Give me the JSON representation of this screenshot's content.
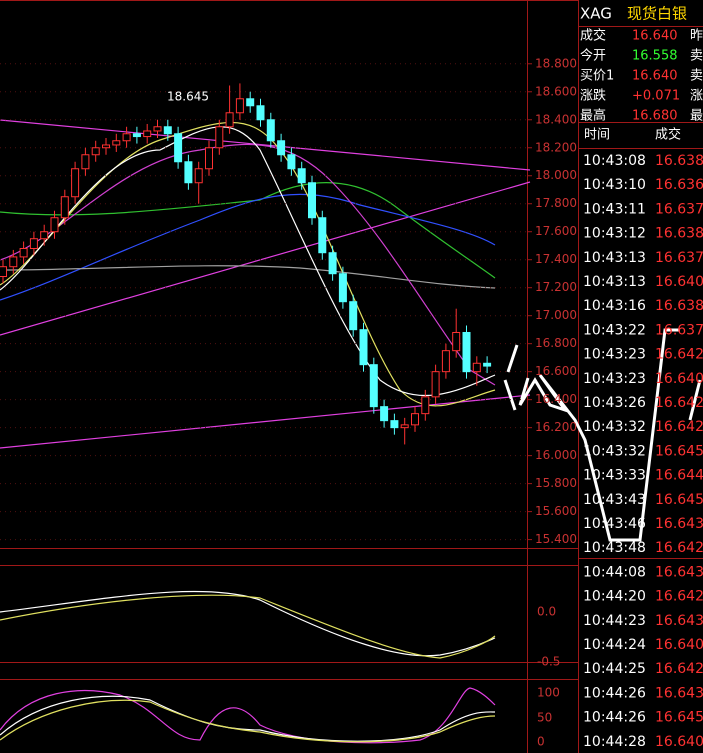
{
  "chart_data": {
    "type": "candlestick",
    "annotation": "18.645",
    "open": [
      17.28,
      17.35,
      17.42,
      17.48,
      17.55,
      17.6,
      17.7,
      17.85,
      18.05,
      18.15,
      18.2,
      18.22,
      18.25,
      18.3,
      18.28,
      18.32,
      18.35,
      18.3,
      18.1,
      17.95,
      18.05,
      18.2,
      18.35,
      18.45,
      18.55,
      18.5,
      18.4,
      18.25,
      18.15,
      18.05,
      17.95,
      17.7,
      17.45,
      17.3,
      17.1,
      16.9,
      16.65,
      16.35,
      16.25,
      16.2,
      16.22,
      16.3,
      16.42,
      16.6,
      16.75,
      16.88,
      16.6,
      16.66
    ],
    "high": [
      17.4,
      17.47,
      17.53,
      17.6,
      17.65,
      17.75,
      17.9,
      18.1,
      18.2,
      18.25,
      18.27,
      18.3,
      18.35,
      18.35,
      18.37,
      18.4,
      18.4,
      18.35,
      18.15,
      18.1,
      18.25,
      18.4,
      18.645,
      18.66,
      18.6,
      18.55,
      18.45,
      18.3,
      18.2,
      18.1,
      18.0,
      17.75,
      17.5,
      17.35,
      17.15,
      16.95,
      16.7,
      16.4,
      16.3,
      16.27,
      16.35,
      16.47,
      16.65,
      16.8,
      17.05,
      16.93,
      16.71,
      16.71
    ],
    "low": [
      17.23,
      17.3,
      17.37,
      17.43,
      17.5,
      17.55,
      17.65,
      17.8,
      18.0,
      18.1,
      18.15,
      18.17,
      18.2,
      18.23,
      18.23,
      18.27,
      18.25,
      18.05,
      17.9,
      17.8,
      18.0,
      18.15,
      18.3,
      18.4,
      18.45,
      18.35,
      18.2,
      18.1,
      18.0,
      17.9,
      17.65,
      17.4,
      17.25,
      17.05,
      16.85,
      16.6,
      16.3,
      16.2,
      16.15,
      16.08,
      16.17,
      16.25,
      16.37,
      16.55,
      16.7,
      16.55,
      16.5,
      16.59
    ],
    "close": [
      17.35,
      17.42,
      17.48,
      17.55,
      17.6,
      17.7,
      17.85,
      18.05,
      18.15,
      18.2,
      18.22,
      18.25,
      18.3,
      18.28,
      18.32,
      18.35,
      18.3,
      18.1,
      17.95,
      18.05,
      18.2,
      18.35,
      18.45,
      18.55,
      18.5,
      18.4,
      18.25,
      18.15,
      18.05,
      17.95,
      17.7,
      17.45,
      17.3,
      17.1,
      16.9,
      16.65,
      16.35,
      16.25,
      16.2,
      16.22,
      16.3,
      16.42,
      16.6,
      16.75,
      16.88,
      16.6,
      16.66,
      16.64
    ],
    "up_color": "#ff3232",
    "down_color": "#54ffff",
    "ylim": [
      15.34,
      18.97
    ],
    "yticks": [
      {
        "value": 18.8,
        "label": "18.800"
      },
      {
        "value": 18.6,
        "label": "18.600"
      },
      {
        "value": 18.4,
        "label": "18.400"
      },
      {
        "value": 18.2,
        "label": "18.200"
      },
      {
        "value": 18,
        "label": "18.000"
      },
      {
        "value": 17.8,
        "label": "17.800"
      },
      {
        "value": 17.6,
        "label": "17.600"
      },
      {
        "value": 17.4,
        "label": "17.400"
      },
      {
        "value": 17.2,
        "label": "17.200"
      },
      {
        "value": 17,
        "label": "17.000"
      },
      {
        "value": 16.8,
        "label": "16.800"
      },
      {
        "value": 16.6,
        "label": "16.600"
      },
      {
        "value": 16.4,
        "label": "16.400"
      },
      {
        "value": 16.2,
        "label": "16.200"
      },
      {
        "value": 16,
        "label": "16.000"
      },
      {
        "value": 15.8,
        "label": "15.800"
      },
      {
        "value": 15.6,
        "label": "15.600"
      },
      {
        "value": 15.4,
        "label": "15.400"
      }
    ],
    "macd_labels": [
      "0.0",
      "-0.5"
    ],
    "kdj_labels": [
      "100",
      "50",
      "0"
    ]
  },
  "quote": {
    "symbol": "XAG",
    "name": "现货白银",
    "rows": [
      [
        "成交",
        "16.640",
        "昨"
      ],
      [
        "今开",
        "16.558",
        "卖"
      ],
      [
        "买价1",
        "16.640",
        "卖"
      ],
      [
        "涨跌",
        "+0.071",
        "涨"
      ],
      [
        "最高",
        "16.680",
        "最"
      ]
    ]
  },
  "ticks": {
    "header": [
      "时间",
      "成交"
    ],
    "rows": [
      [
        "10:43:08",
        "16.638"
      ],
      [
        "10:43:10",
        "16.636"
      ],
      [
        "10:43:11",
        "16.637"
      ],
      [
        "10:43:12",
        "16.638"
      ],
      [
        "10:43:13",
        "16.637"
      ],
      [
        "10:43:13",
        "16.640"
      ],
      [
        "10:43:16",
        "16.638"
      ],
      [
        "10:43:22",
        "16.637"
      ],
      [
        "10:43:23",
        "16.642"
      ],
      [
        "10:43:23",
        "16.640"
      ],
      [
        "10:43:26",
        "16.642"
      ],
      [
        "10:43:32",
        "16.642"
      ],
      [
        "10:43:32",
        "16.645"
      ],
      [
        "10:43:33",
        "16.644"
      ],
      [
        "10:43:43",
        "16.645"
      ],
      [
        "10:43:46",
        "16.643"
      ],
      [
        "10:43:48",
        "16.642"
      ],
      [
        "10:44:08",
        "16.643"
      ],
      [
        "10:44:20",
        "16.642"
      ],
      [
        "10:44:23",
        "16.643"
      ],
      [
        "10:44:24",
        "16.640"
      ],
      [
        "10:44:25",
        "16.642"
      ],
      [
        "10:44:26",
        "16.643"
      ],
      [
        "10:44:26",
        "16.645"
      ],
      [
        "10:44:28",
        "16.640"
      ]
    ]
  }
}
